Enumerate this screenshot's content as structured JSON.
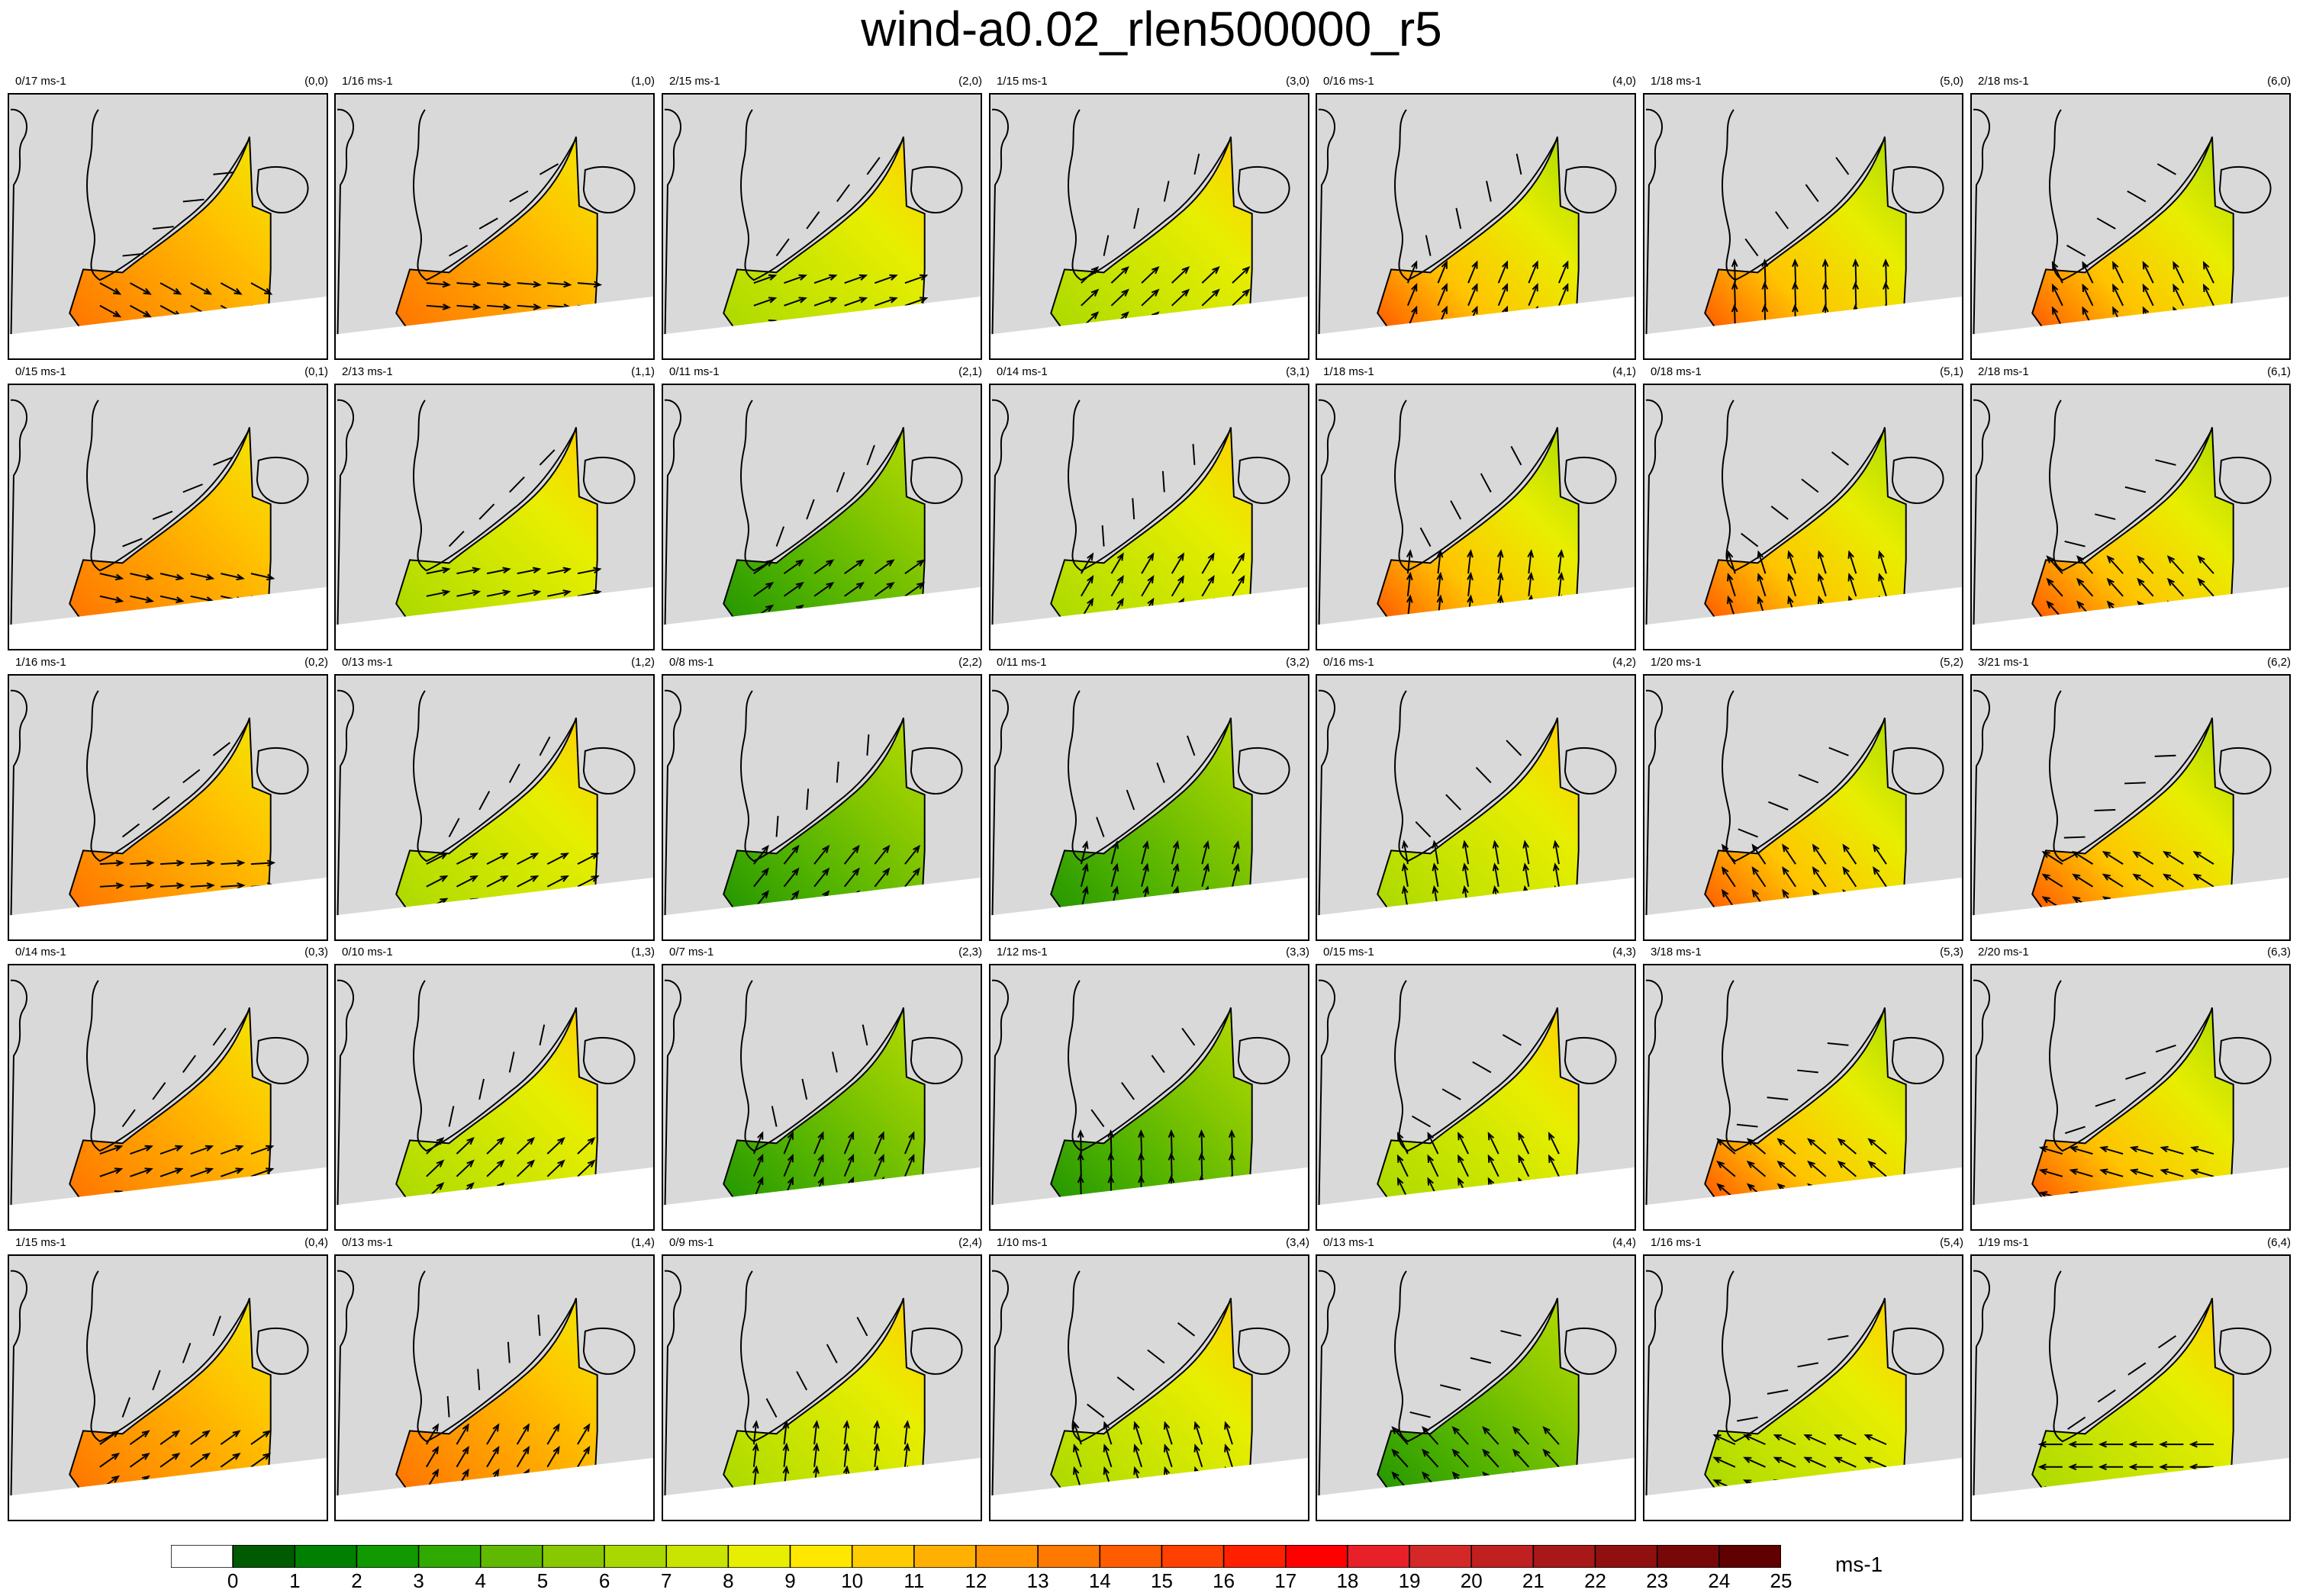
{
  "title": "wind-a0.02_rlen500000_r5",
  "panels": [
    [
      {
        "range": "0/17 ms-1",
        "index": "(0,0)",
        "palette": "hot"
      },
      {
        "range": "1/16 ms-1",
        "index": "(1,0)",
        "palette": "hot"
      },
      {
        "range": "2/15 ms-1",
        "index": "(2,0)",
        "palette": "mid"
      },
      {
        "range": "1/15 ms-1",
        "index": "(3,0)",
        "palette": "mid"
      },
      {
        "range": "0/16 ms-1",
        "index": "(4,0)",
        "palette": "warm"
      },
      {
        "range": "1/18 ms-1",
        "index": "(5,0)",
        "palette": "warm"
      },
      {
        "range": "2/18 ms-1",
        "index": "(6,0)",
        "palette": "warm"
      }
    ],
    [
      {
        "range": "0/15 ms-1",
        "index": "(0,1)",
        "palette": "hot"
      },
      {
        "range": "2/13 ms-1",
        "index": "(1,1)",
        "palette": "mid"
      },
      {
        "range": "0/11 ms-1",
        "index": "(2,1)",
        "palette": "cool"
      },
      {
        "range": "0/14 ms-1",
        "index": "(3,1)",
        "palette": "mid"
      },
      {
        "range": "1/18 ms-1",
        "index": "(4,1)",
        "palette": "warm"
      },
      {
        "range": "0/18 ms-1",
        "index": "(5,1)",
        "palette": "warm"
      },
      {
        "range": "2/18 ms-1",
        "index": "(6,1)",
        "palette": "warm"
      }
    ],
    [
      {
        "range": "1/16 ms-1",
        "index": "(0,2)",
        "palette": "hot"
      },
      {
        "range": "0/13 ms-1",
        "index": "(1,2)",
        "palette": "mid"
      },
      {
        "range": "0/8 ms-1",
        "index": "(2,2)",
        "palette": "cool"
      },
      {
        "range": "0/11 ms-1",
        "index": "(3,2)",
        "palette": "cool"
      },
      {
        "range": "0/16 ms-1",
        "index": "(4,2)",
        "palette": "mid"
      },
      {
        "range": "1/20 ms-1",
        "index": "(5,2)",
        "palette": "warm"
      },
      {
        "range": "3/21 ms-1",
        "index": "(6,2)",
        "palette": "warm"
      }
    ],
    [
      {
        "range": "0/14 ms-1",
        "index": "(0,3)",
        "palette": "hot"
      },
      {
        "range": "0/10 ms-1",
        "index": "(1,3)",
        "palette": "mid"
      },
      {
        "range": "0/7 ms-1",
        "index": "(2,3)",
        "palette": "cool"
      },
      {
        "range": "1/12 ms-1",
        "index": "(3,3)",
        "palette": "cool"
      },
      {
        "range": "0/15 ms-1",
        "index": "(4,3)",
        "palette": "mid"
      },
      {
        "range": "3/18 ms-1",
        "index": "(5,3)",
        "palette": "warm"
      },
      {
        "range": "2/20 ms-1",
        "index": "(6,3)",
        "palette": "warm"
      }
    ],
    [
      {
        "range": "1/15 ms-1",
        "index": "(0,4)",
        "palette": "hot"
      },
      {
        "range": "0/13 ms-1",
        "index": "(1,4)",
        "palette": "hot"
      },
      {
        "range": "0/9 ms-1",
        "index": "(2,4)",
        "palette": "mid"
      },
      {
        "range": "1/10 ms-1",
        "index": "(3,4)",
        "palette": "mid"
      },
      {
        "range": "0/13 ms-1",
        "index": "(4,4)",
        "palette": "cool"
      },
      {
        "range": "1/16 ms-1",
        "index": "(5,4)",
        "palette": "mid"
      },
      {
        "range": "1/19 ms-1",
        "index": "(6,4)",
        "palette": "mid"
      }
    ]
  ],
  "colorbar": {
    "units": "ms-1",
    "ticks": [
      "0",
      "1",
      "2",
      "3",
      "4",
      "5",
      "6",
      "7",
      "8",
      "9",
      "10",
      "11",
      "12",
      "13",
      "14",
      "15",
      "16",
      "17",
      "18",
      "19",
      "20",
      "21",
      "22",
      "23",
      "24",
      "25"
    ],
    "colors": [
      "#ffffff",
      "#005a00",
      "#008000",
      "#109a00",
      "#30aa00",
      "#60b800",
      "#88c800",
      "#a8d800",
      "#c8e400",
      "#e8ee00",
      "#ffe800",
      "#ffcc00",
      "#ffb000",
      "#ff9400",
      "#ff7800",
      "#ff5c00",
      "#ff4000",
      "#ff2000",
      "#ff0000",
      "#e8202a",
      "#d42828",
      "#c02020",
      "#a81818",
      "#901010",
      "#780808",
      "#600000"
    ]
  },
  "palettes": {
    "hot": [
      "#ff7000",
      "#ff9a00",
      "#ffc400",
      "#f0e800"
    ],
    "warm": [
      "#ff5000",
      "#ffc400",
      "#e8ee00",
      "#a8d800"
    ],
    "mid": [
      "#a8d800",
      "#c8e400",
      "#e8ee00",
      "#ffcc00"
    ],
    "cool": [
      "#209400",
      "#50b200",
      "#88c800",
      "#b8dc00"
    ]
  }
}
